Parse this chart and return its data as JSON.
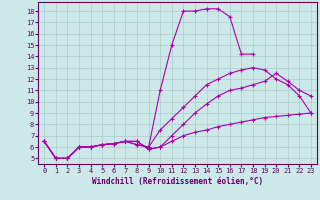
{
  "xlabel": "Windchill (Refroidissement éolien,°C)",
  "bg_color": "#cce8e8",
  "line_color": "#aa00aa",
  "grid_color": "#aacccc",
  "spine_color": "#660066",
  "xlim": [
    -0.5,
    23.5
  ],
  "ylim": [
    4.5,
    18.8
  ],
  "xticks": [
    0,
    1,
    2,
    3,
    4,
    5,
    6,
    7,
    8,
    9,
    10,
    11,
    12,
    13,
    14,
    15,
    16,
    17,
    18,
    19,
    20,
    21,
    22,
    23
  ],
  "yticks": [
    5,
    6,
    7,
    8,
    9,
    10,
    11,
    12,
    13,
    14,
    15,
    16,
    17,
    18
  ],
  "lines": [
    {
      "x": [
        0,
        1,
        2,
        3,
        4,
        5,
        6,
        7,
        8,
        9,
        10,
        11,
        12,
        13,
        14,
        15,
        16,
        17,
        18
      ],
      "y": [
        6.5,
        5.0,
        5.0,
        6.0,
        6.0,
        6.2,
        6.3,
        6.5,
        6.2,
        6.0,
        11.0,
        15.0,
        18.0,
        18.0,
        18.2,
        18.2,
        17.5,
        14.2,
        14.2
      ]
    },
    {
      "x": [
        0,
        1,
        2,
        3,
        4,
        5,
        6,
        7,
        8,
        9,
        10,
        11,
        12,
        13,
        14,
        15,
        16,
        17,
        18,
        19,
        20,
        21,
        22,
        23
      ],
      "y": [
        6.5,
        5.0,
        5.0,
        6.0,
        6.0,
        6.2,
        6.3,
        6.5,
        6.2,
        6.0,
        7.5,
        8.5,
        9.5,
        10.5,
        11.5,
        12.0,
        12.5,
        12.8,
        13.0,
        12.8,
        12.0,
        11.5,
        10.5,
        9.0
      ]
    },
    {
      "x": [
        0,
        1,
        2,
        3,
        4,
        5,
        6,
        7,
        8,
        9,
        10,
        11,
        12,
        13,
        14,
        15,
        16,
        17,
        18,
        19,
        20,
        21,
        22,
        23
      ],
      "y": [
        6.5,
        5.0,
        5.0,
        6.0,
        6.0,
        6.2,
        6.3,
        6.5,
        6.5,
        5.8,
        6.0,
        7.0,
        8.0,
        9.0,
        9.8,
        10.5,
        11.0,
        11.2,
        11.5,
        11.8,
        12.5,
        11.8,
        11.0,
        10.5
      ]
    },
    {
      "x": [
        0,
        1,
        2,
        3,
        4,
        5,
        6,
        7,
        8,
        9,
        10,
        11,
        12,
        13,
        14,
        15,
        16,
        17,
        18,
        19,
        20,
        21,
        22,
        23
      ],
      "y": [
        6.5,
        5.0,
        5.0,
        6.0,
        6.0,
        6.2,
        6.3,
        6.5,
        6.5,
        5.8,
        6.0,
        6.5,
        7.0,
        7.3,
        7.5,
        7.8,
        8.0,
        8.2,
        8.4,
        8.6,
        8.7,
        8.8,
        8.9,
        9.0
      ]
    }
  ]
}
